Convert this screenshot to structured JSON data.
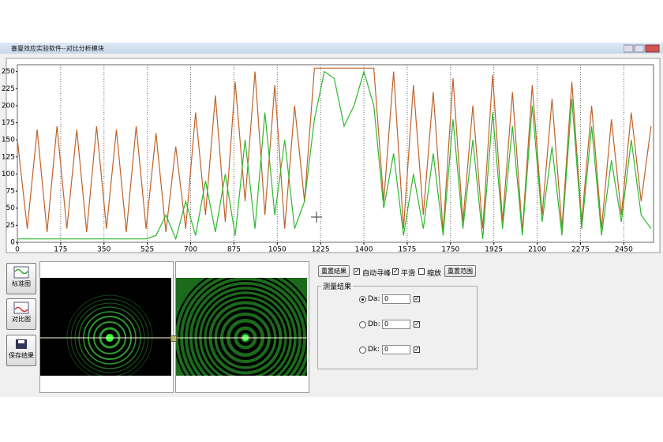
{
  "window": {
    "title": "塞曼效应实验软件--对比分析模块"
  },
  "chart_data": {
    "type": "line",
    "xlim": [
      0,
      2570
    ],
    "ylim": [
      0,
      260
    ],
    "xticks": [
      0,
      175,
      350,
      525,
      700,
      875,
      1050,
      1225,
      1400,
      1575,
      1750,
      1925,
      2100,
      2275,
      2450
    ],
    "yticks": [
      0,
      25,
      50,
      75,
      100,
      125,
      150,
      175,
      200,
      225,
      250
    ],
    "grid": true,
    "x": [
      0,
      40,
      80,
      120,
      160,
      200,
      240,
      280,
      320,
      360,
      400,
      440,
      480,
      520,
      560,
      600,
      640,
      680,
      720,
      760,
      800,
      840,
      880,
      920,
      960,
      1000,
      1040,
      1080,
      1120,
      1160,
      1200,
      1240,
      1280,
      1320,
      1360,
      1400,
      1440,
      1480,
      1520,
      1560,
      1600,
      1640,
      1680,
      1720,
      1760,
      1800,
      1840,
      1880,
      1920,
      1960,
      2000,
      2040,
      2080,
      2120,
      2160,
      2200,
      2240,
      2280,
      2320,
      2360,
      2400,
      2440,
      2480,
      2520,
      2560
    ],
    "series": [
      {
        "color": "#c0622a",
        "values": [
          150,
          20,
          165,
          15,
          170,
          20,
          165,
          15,
          170,
          20,
          165,
          15,
          170,
          20,
          160,
          15,
          140,
          20,
          190,
          40,
          215,
          30,
          235,
          60,
          250,
          40,
          230,
          20,
          200,
          60,
          255,
          255,
          255,
          255,
          255,
          255,
          255,
          60,
          250,
          20,
          230,
          40,
          220,
          15,
          240,
          30,
          200,
          20,
          245,
          30,
          220,
          15,
          230,
          40,
          210,
          20,
          235,
          30,
          200,
          20,
          180,
          40,
          190,
          60,
          170
        ]
      },
      {
        "color": "#2eb82e",
        "values": [
          5,
          5,
          5,
          5,
          5,
          5,
          5,
          5,
          5,
          5,
          5,
          5,
          5,
          5,
          10,
          40,
          5,
          60,
          10,
          90,
          15,
          100,
          10,
          150,
          20,
          190,
          40,
          150,
          20,
          60,
          180,
          250,
          240,
          170,
          200,
          250,
          200,
          50,
          130,
          10,
          100,
          20,
          130,
          10,
          180,
          20,
          150,
          5,
          190,
          20,
          170,
          10,
          200,
          30,
          140,
          10,
          210,
          20,
          170,
          10,
          120,
          30,
          150,
          40,
          20
        ]
      }
    ]
  },
  "sidebar": {
    "buttons": [
      "标准图",
      "对比图",
      "保存结果"
    ]
  },
  "controls": {
    "reset_result": "重置结果",
    "auto_peak": {
      "label": "自动寻峰",
      "checked": true
    },
    "smooth": {
      "label": "平滑",
      "checked": true
    },
    "zoom": {
      "label": "缩放",
      "checked": false
    },
    "reset_range": "重置范围"
  },
  "results": {
    "title": "测量结果",
    "rows": [
      {
        "label": "Da:",
        "selected": true,
        "value": "0",
        "checked": true
      },
      {
        "label": "Db:",
        "selected": false,
        "value": "0",
        "checked": true
      },
      {
        "label": "Dk:",
        "selected": false,
        "value": "0",
        "checked": true
      }
    ]
  }
}
